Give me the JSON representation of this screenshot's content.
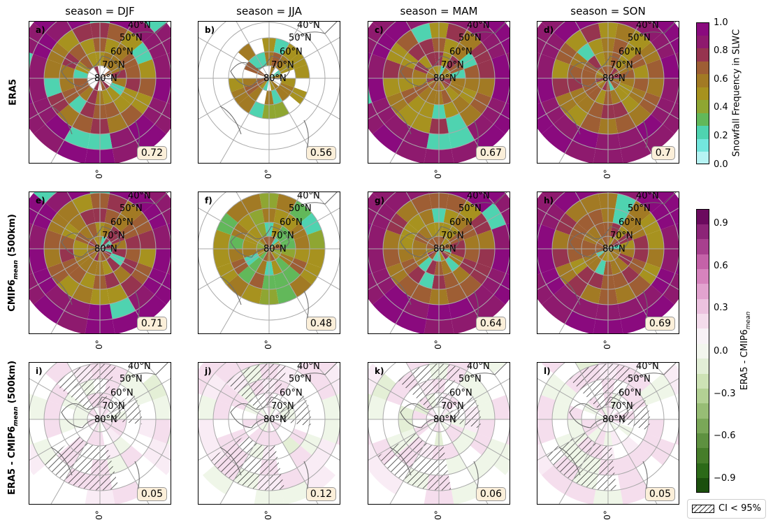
{
  "column_titles": [
    "season = DJF",
    "season = JJA",
    "season = MAM",
    "season = SON"
  ],
  "row_labels": {
    "row1": "ERA5",
    "row2_main": "CMIP6",
    "row2_sub": "mean",
    "row2_tail": " (500km)",
    "row3_main": "ERA5 - CMIP6",
    "row3_sub": "mean",
    "row3_tail": " (500km)"
  },
  "latitude_labels": [
    "40°N",
    "50°N",
    "60°N",
    "70°N",
    "80°N"
  ],
  "meridian_label": "0°",
  "panels": [
    {
      "label": "a)",
      "value": "0.72"
    },
    {
      "label": "b)",
      "value": "0.56"
    },
    {
      "label": "c)",
      "value": "0.67"
    },
    {
      "label": "d)",
      "value": "0.7"
    },
    {
      "label": "e)",
      "value": "0.71"
    },
    {
      "label": "f)",
      "value": "0.48"
    },
    {
      "label": "g)",
      "value": "0.64"
    },
    {
      "label": "h)",
      "value": "0.69"
    },
    {
      "label": "i)",
      "value": "0.05"
    },
    {
      "label": "j)",
      "value": "0.12"
    },
    {
      "label": "k)",
      "value": "0.06"
    },
    {
      "label": "l)",
      "value": "0.05"
    }
  ],
  "colorbar_top": {
    "label": "Snowfall Frequency in SLWC",
    "ticks": [
      "0.0",
      "0.2",
      "0.4",
      "0.6",
      "0.8",
      "1.0"
    ],
    "colors": [
      "#b6f3f3",
      "#73e6dd",
      "#4fd3b0",
      "#62b85a",
      "#8fa632",
      "#a7921f",
      "#a27a24",
      "#9e5e34",
      "#96344f",
      "#8e1a6e",
      "#8a0a7e"
    ]
  },
  "colorbar_bottom": {
    "label_main": "ERA5 - CMIP6",
    "label_sub": "mean",
    "ticks": [
      "0.9",
      "0.6",
      "0.3",
      "0.0",
      "−0.3",
      "−0.6",
      "−0.9"
    ],
    "colors": [
      "#1b4f0d",
      "#2c6a18",
      "#467d2a",
      "#5e9140",
      "#7aa758",
      "#97bd75",
      "#b3d194",
      "#cde2b5",
      "#e2eed6",
      "#f3f6ee",
      "#f8f2f6",
      "#f4dcec",
      "#ecc2df",
      "#e2a3cf",
      "#d683bd",
      "#c462a8",
      "#a8408e",
      "#8c2477",
      "#6b0a5e"
    ]
  },
  "legend": {
    "label": "CI < 95%"
  },
  "chart_data": {
    "type": "heatmap",
    "title": "",
    "columns": [
      "DJF",
      "JJA",
      "MAM",
      "SON"
    ],
    "rows": [
      "ERA5",
      "CMIP6 mean (500km)",
      "ERA5 - CMIP6 mean (500km)"
    ],
    "panel_values": [
      [
        0.72,
        0.56,
        0.67,
        0.7
      ],
      [
        0.71,
        0.48,
        0.64,
        0.69
      ],
      [
        0.05,
        0.12,
        0.06,
        0.05
      ]
    ],
    "top_colorbar_range": [
      0.0,
      1.0
    ],
    "bottom_colorbar_range": [
      -1.0,
      1.0
    ]
  }
}
